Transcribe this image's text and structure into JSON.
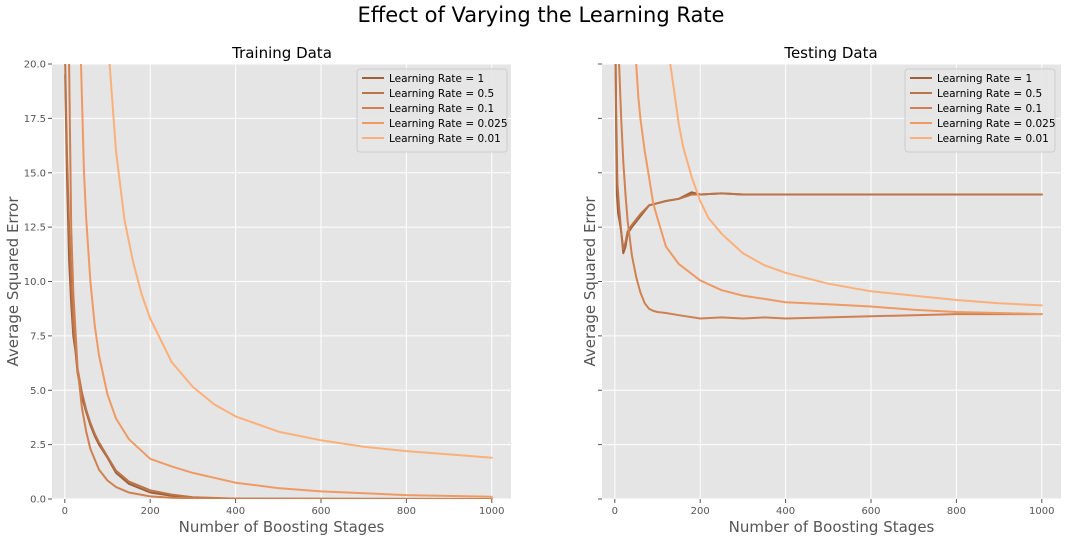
{
  "figure": {
    "title": "Effect of Varying the Learning Rate",
    "panel_bg": "#e5e5e5",
    "grid_color": "#ffffff"
  },
  "chart_data": [
    {
      "type": "line",
      "title": "Training Data",
      "xlabel": "Number of Boosting Stages",
      "ylabel": "Average Squared Error",
      "xlim": [
        -30,
        1045
      ],
      "ylim": [
        0,
        20
      ],
      "xticks": [
        0,
        200,
        400,
        600,
        800,
        1000
      ],
      "xtick_labels": [
        "0",
        "200",
        "400",
        "600",
        "800",
        "1000"
      ],
      "yticks": [
        0,
        2.5,
        5,
        7.5,
        10,
        12.5,
        15,
        17.5,
        20
      ],
      "ytick_labels": [
        "0.0",
        "2.5",
        "5.0",
        "7.5",
        "10.0",
        "12.5",
        "15.0",
        "17.5",
        "20.0"
      ],
      "grid": true,
      "legend": "top-right",
      "series": [
        {
          "name": "Learning Rate = 1",
          "color": "#a0603a",
          "x": [
            1,
            5,
            10,
            15,
            20,
            25,
            30,
            40,
            50,
            60,
            70,
            80,
            100,
            120,
            150,
            200,
            250,
            300,
            400,
            1000
          ],
          "y": [
            19.5,
            15.0,
            11.0,
            9.0,
            7.5,
            6.8,
            5.8,
            4.7,
            4.0,
            3.4,
            2.9,
            2.5,
            1.9,
            1.2,
            0.7,
            0.3,
            0.15,
            0.05,
            0.01,
            0.0
          ]
        },
        {
          "name": "Learning Rate = 0.5",
          "color": "#bb7448",
          "x": [
            1,
            5,
            10,
            15,
            20,
            25,
            30,
            40,
            50,
            60,
            70,
            80,
            100,
            120,
            150,
            200,
            250,
            300,
            400,
            1000
          ],
          "y": [
            20.0,
            16.0,
            12.5,
            10.0,
            8.0,
            7.0,
            6.0,
            4.9,
            4.1,
            3.5,
            3.0,
            2.6,
            1.95,
            1.3,
            0.8,
            0.4,
            0.2,
            0.08,
            0.02,
            0.0
          ]
        },
        {
          "name": "Learning Rate = 0.1",
          "color": "#d08050",
          "x": [
            10,
            15,
            20,
            30,
            40,
            50,
            60,
            80,
            100,
            120,
            150,
            200,
            250,
            300,
            400,
            500,
            600,
            800,
            1000
          ],
          "y": [
            20.0,
            12.5,
            9.5,
            6.0,
            4.2,
            3.1,
            2.3,
            1.35,
            0.85,
            0.55,
            0.3,
            0.12,
            0.06,
            0.03,
            0.01,
            0.0,
            0.0,
            0.0,
            0.0
          ]
        },
        {
          "name": "Learning Rate = 0.025",
          "color": "#ee9a62",
          "x": [
            38,
            45,
            50,
            60,
            70,
            80,
            100,
            120,
            150,
            200,
            250,
            300,
            400,
            500,
            600,
            800,
            1000
          ],
          "y": [
            20.0,
            15.0,
            12.9,
            10.0,
            8.0,
            6.6,
            4.8,
            3.7,
            2.75,
            1.85,
            1.5,
            1.2,
            0.75,
            0.5,
            0.35,
            0.18,
            0.1
          ]
        },
        {
          "name": "Learning Rate = 0.01",
          "color": "#fbb07a",
          "x": [
            105,
            120,
            140,
            160,
            180,
            200,
            250,
            300,
            350,
            400,
            500,
            600,
            700,
            800,
            900,
            1000
          ],
          "y": [
            20.0,
            16.0,
            12.8,
            10.9,
            9.4,
            8.3,
            6.3,
            5.15,
            4.35,
            3.8,
            3.1,
            2.7,
            2.4,
            2.2,
            2.05,
            1.9
          ]
        }
      ]
    },
    {
      "type": "line",
      "title": "Testing Data",
      "xlabel": "Number of Boosting Stages",
      "ylabel": "Average Squared Error",
      "xlim": [
        -30,
        1045
      ],
      "ylim": [
        0,
        20
      ],
      "xticks": [
        0,
        200,
        400,
        600,
        800,
        1000
      ],
      "xtick_labels": [
        "0",
        "200",
        "400",
        "600",
        "800",
        "1000"
      ],
      "yticks": [
        0,
        2.5,
        5,
        7.5,
        10,
        12.5,
        15,
        17.5,
        20
      ],
      "grid": true,
      "legend": "top-right",
      "series": [
        {
          "name": "Learning Rate = 1",
          "color": "#a0603a",
          "x": [
            1,
            3,
            5,
            8,
            10,
            15,
            20,
            25,
            30,
            40,
            60,
            80,
            100,
            120,
            150,
            180,
            200,
            250,
            300,
            400,
            600,
            800,
            1000
          ],
          "y": [
            22.0,
            17.0,
            14.0,
            13.1,
            12.9,
            12.3,
            11.3,
            11.6,
            12.2,
            12.5,
            13.0,
            13.5,
            13.6,
            13.7,
            13.8,
            14.1,
            14.0,
            14.05,
            14.0,
            14.0,
            14.0,
            14.0,
            14.0
          ]
        },
        {
          "name": "Learning Rate = 0.5",
          "color": "#bb7448",
          "x": [
            1,
            3,
            6,
            10,
            15,
            20,
            25,
            30,
            40,
            60,
            80,
            100,
            120,
            150,
            180,
            200,
            250,
            300,
            400,
            600,
            800,
            1000
          ],
          "y": [
            22.0,
            18.0,
            14.5,
            13.4,
            12.3,
            11.5,
            11.8,
            12.3,
            12.6,
            13.1,
            13.5,
            13.6,
            13.7,
            13.8,
            14.0,
            14.0,
            14.05,
            14.0,
            14.0,
            14.0,
            14.0,
            14.0
          ]
        },
        {
          "name": "Learning Rate = 0.1",
          "color": "#d08050",
          "x": [
            5,
            10,
            15,
            20,
            25,
            30,
            40,
            50,
            60,
            70,
            80,
            90,
            100,
            120,
            150,
            200,
            250,
            300,
            350,
            400,
            500,
            600,
            700,
            800,
            900,
            1000
          ],
          "y": [
            22.0,
            20.0,
            17.5,
            15.5,
            14.0,
            12.8,
            11.2,
            10.2,
            9.5,
            9.0,
            8.75,
            8.65,
            8.6,
            8.55,
            8.45,
            8.3,
            8.35,
            8.3,
            8.35,
            8.3,
            8.35,
            8.4,
            8.45,
            8.5,
            8.5,
            8.5
          ]
        },
        {
          "name": "Learning Rate = 0.025",
          "color": "#ee9a62",
          "x": [
            50,
            55,
            60,
            70,
            80,
            90,
            100,
            120,
            150,
            200,
            250,
            300,
            350,
            400,
            500,
            600,
            700,
            800,
            900,
            1000
          ],
          "y": [
            20.0,
            18.5,
            17.5,
            16.0,
            14.8,
            13.6,
            12.9,
            11.6,
            10.8,
            10.05,
            9.6,
            9.35,
            9.2,
            9.05,
            8.95,
            8.85,
            8.7,
            8.6,
            8.55,
            8.5
          ]
        },
        {
          "name": "Learning Rate = 0.01",
          "color": "#fbb07a",
          "x": [
            130,
            140,
            150,
            160,
            180,
            200,
            220,
            250,
            300,
            350,
            400,
            500,
            600,
            700,
            800,
            900,
            1000
          ],
          "y": [
            20.0,
            18.6,
            17.2,
            16.2,
            14.8,
            13.7,
            12.9,
            12.2,
            11.3,
            10.75,
            10.4,
            9.9,
            9.55,
            9.35,
            9.15,
            9.0,
            8.9
          ]
        }
      ]
    }
  ]
}
